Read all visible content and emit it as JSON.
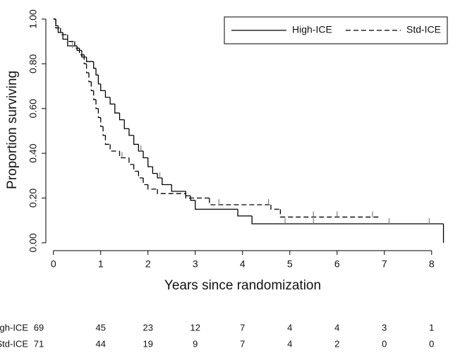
{
  "chart_data": {
    "type": "step",
    "x_label": "Years since randomization",
    "y_label": "Proportion surviving",
    "xlim": [
      -0.16,
      8.57
    ],
    "ylim": [
      -0.035,
      1.022
    ],
    "xticks": [
      0,
      1,
      2,
      3,
      4,
      5,
      6,
      7,
      8
    ],
    "yticks": [
      {
        "value": 0,
        "label": "0.00"
      },
      {
        "value": 0.2,
        "label": "0.20"
      },
      {
        "value": 0.4,
        "label": "0.40"
      },
      {
        "value": 0.6,
        "label": "0.60"
      },
      {
        "value": 0.8,
        "label": "0.80"
      },
      {
        "value": 1,
        "label": "1.00"
      }
    ],
    "legend": "top-right",
    "series": [
      {
        "name": "High-ICE",
        "color": "#000000",
        "dash": "solid",
        "x": [
          0,
          0.05,
          0.1,
          0.2,
          0.3,
          0.5,
          0.6,
          0.7,
          0.85,
          0.9,
          0.95,
          1.0,
          1.1,
          1.2,
          1.3,
          1.4,
          1.5,
          1.6,
          1.7,
          1.8,
          1.9,
          2.0,
          2.1,
          2.2,
          2.3,
          2.5,
          2.8,
          2.9,
          3.0,
          3.9,
          4.2,
          8.25
        ],
        "values": [
          1.0,
          0.97,
          0.94,
          0.91,
          0.88,
          0.86,
          0.83,
          0.81,
          0.78,
          0.75,
          0.71,
          0.68,
          0.65,
          0.62,
          0.58,
          0.55,
          0.51,
          0.48,
          0.44,
          0.41,
          0.38,
          0.34,
          0.31,
          0.29,
          0.26,
          0.23,
          0.21,
          0.19,
          0.15,
          0.12,
          0.085,
          0
        ],
        "censored": {
          "x": [
            1.85,
            2.25,
            4.9,
            5.5,
            7.1,
            7.95
          ],
          "values": [
            0.41,
            0.29,
            0.085,
            0.085,
            0.085,
            0.085
          ]
        },
        "at_risk": [
          69,
          45,
          23,
          12,
          7,
          4,
          4,
          3,
          1
        ]
      },
      {
        "name": "Std-ICE",
        "color": "#000000",
        "dash": "dashed",
        "x": [
          0,
          0.05,
          0.15,
          0.3,
          0.45,
          0.55,
          0.65,
          0.7,
          0.75,
          0.8,
          0.85,
          0.9,
          0.95,
          1.0,
          1.05,
          1.1,
          1.2,
          1.4,
          1.6,
          1.7,
          1.8,
          1.9,
          2.0,
          2.2,
          2.8,
          3.3,
          4.6,
          4.8,
          6.9
        ],
        "values": [
          1.0,
          0.96,
          0.93,
          0.9,
          0.87,
          0.84,
          0.8,
          0.76,
          0.72,
          0.68,
          0.64,
          0.6,
          0.56,
          0.52,
          0.48,
          0.44,
          0.41,
          0.38,
          0.35,
          0.32,
          0.29,
          0.26,
          0.24,
          0.22,
          0.2,
          0.17,
          0.15,
          0.115,
          0.115
        ],
        "censored": {
          "x": [
            0.4,
            1.45,
            3.5,
            4.55,
            5.5,
            6.0,
            6.75
          ],
          "values": [
            0.87,
            0.38,
            0.17,
            0.17,
            0.115,
            0.115,
            0.115
          ]
        },
        "at_risk": [
          71,
          44,
          19,
          9,
          7,
          4,
          2,
          0,
          0
        ]
      }
    ]
  }
}
